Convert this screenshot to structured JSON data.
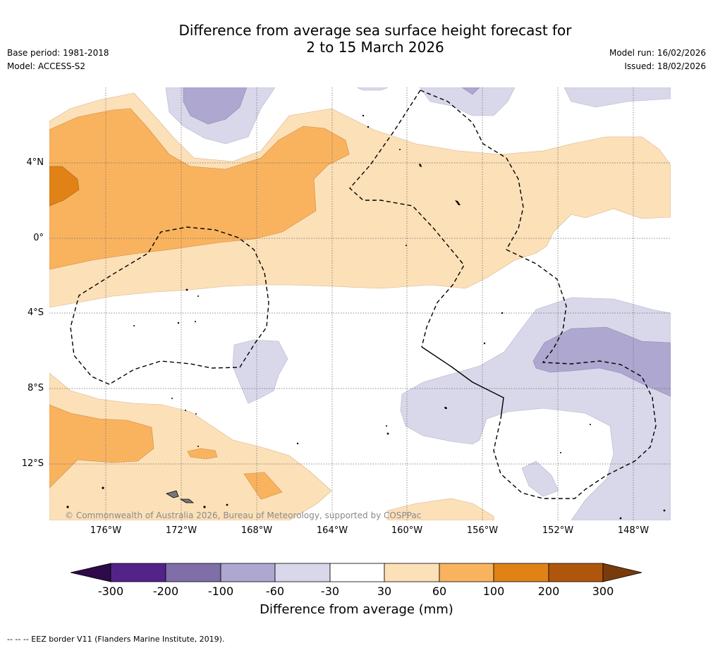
{
  "title": {
    "line1": "Difference from average sea surface height forecast for",
    "line2": "2 to 15 March 2026"
  },
  "meta": {
    "base_period": "Base period: 1981-2018",
    "model": "Model: ACCESS-S2",
    "model_run": "Model run: 16/02/2026",
    "issued": "Issued: 18/02/2026"
  },
  "map": {
    "latitude_labels": [
      "4°N",
      "0°",
      "4°S",
      "8°S",
      "12°S"
    ],
    "longitude_labels": [
      "176°W",
      "172°W",
      "168°W",
      "164°W",
      "160°W",
      "156°W",
      "152°W",
      "148°W"
    ],
    "copyright": "© Commonwealth of Australia 2026, Bureau of Meteorology, supported by COSPPac"
  },
  "colorbar": {
    "ticks": [
      "-300",
      "-200",
      "-100",
      "-60",
      "-30",
      "30",
      "60",
      "100",
      "200",
      "300"
    ],
    "colors": [
      "#2e0a4a",
      "#54238a",
      "#7f6ea8",
      "#aea7cf",
      "#d8d8ea",
      "#ffffff",
      "#fce0b8",
      "#f9b35f",
      "#e08216",
      "#b0560c",
      "#7a3b0a"
    ],
    "label": "Difference from average (mm)"
  },
  "footnote": "--  --  -- EEZ border V11 (Flanders Marine Institute, 2019)."
}
